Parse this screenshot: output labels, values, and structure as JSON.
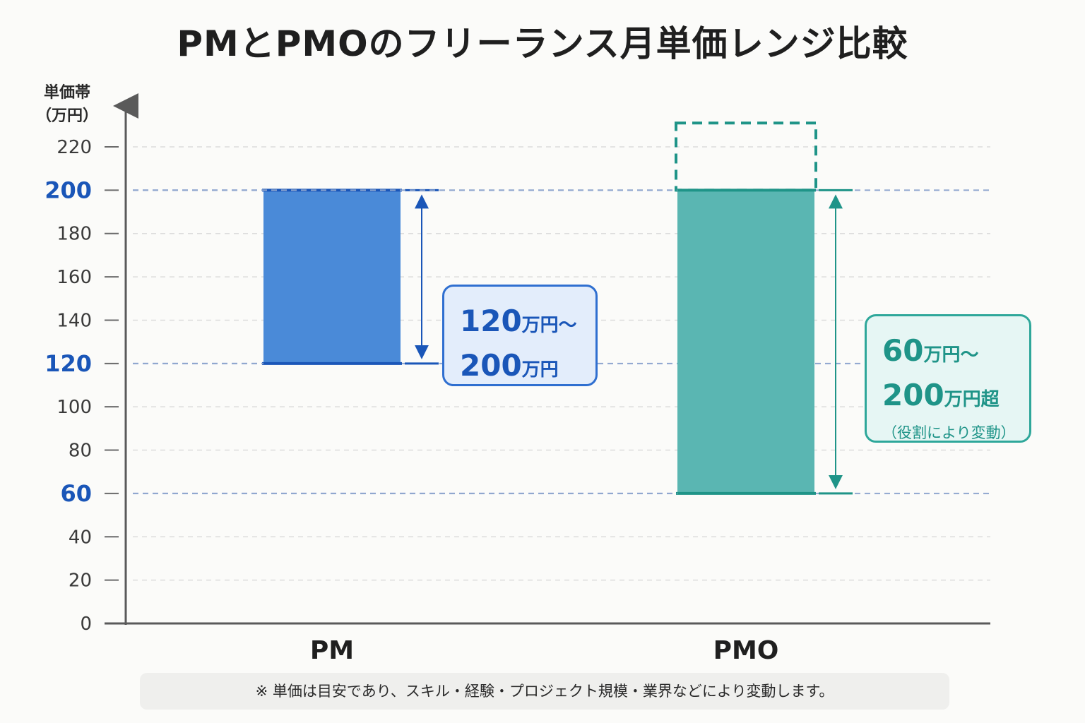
{
  "chart_data": {
    "type": "bar",
    "subtype": "floating-range",
    "title": "PMとPMOのフリーランス月単価レンジ比較",
    "ylabel_line1": "単価帯",
    "ylabel_line2": "（万円）",
    "ylim": [
      0,
      220
    ],
    "yticks": [
      0,
      20,
      40,
      60,
      80,
      100,
      120,
      140,
      160,
      180,
      200,
      220
    ],
    "highlighted_ticks": [
      60,
      120,
      200
    ],
    "categories": [
      "PM",
      "PMO"
    ],
    "series": [
      {
        "category": "PM",
        "low": 120,
        "high": 200,
        "color": "#4a8ad8",
        "label_line1_num": "120",
        "label_line1_unit": "万円〜",
        "label_line2_num": "200",
        "label_line2_unit": "万円"
      },
      {
        "category": "PMO",
        "low": 60,
        "high": 200,
        "extended_high": 231,
        "color": "#5ab6b2",
        "label_line1_num": "60",
        "label_line1_unit": "万円〜",
        "label_line2_num": "200",
        "label_line2_unit": "万円超",
        "label_note": "（役割により変動）"
      }
    ],
    "grid": true,
    "footnote": "※ 単価は目安であり、スキル・経験・プロジェクト規模・業界などにより変動します。"
  },
  "colors": {
    "pm_dark": "#1a56b8",
    "pmo_dark": "#1f9488",
    "axis": "#5a5a5a",
    "grid": "#d8d8d8"
  }
}
